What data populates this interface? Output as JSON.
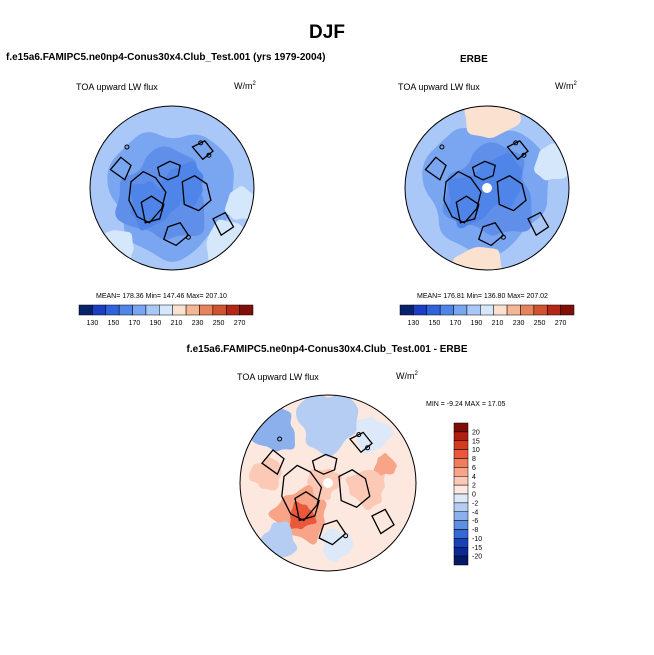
{
  "title": "DJF",
  "panels": [
    {
      "id": "model",
      "title": "f.e15a6.FAMIPC5.ne0np4-Conus30x4.Club_Test.001 (yrs 1979-2004)",
      "variable": "TOA upward LW flux",
      "units_base": "W/m",
      "units_exp": "2",
      "stats": "MEAN= 178.36  Min= 147.46  Max= 207.10"
    },
    {
      "id": "obs",
      "title": "ERBE",
      "variable": "TOA upward LW flux",
      "units_base": "W/m",
      "units_exp": "2",
      "stats": "MEAN= 176.81  Min= 136.80  Max= 207.02"
    },
    {
      "id": "diff",
      "title": "f.e15a6.FAMIPC5.ne0np4-Conus30x4.Club_Test.001 - ERBE",
      "variable": "TOA upward LW flux",
      "units_base": "W/m",
      "units_exp": "2",
      "stats": "MIN =  -9.24 MAX =  17.05"
    }
  ],
  "chart_data": [
    {
      "type": "heatmap",
      "projection": "north polar stereographic",
      "title": "f.e15a6.FAMIPC5.ne0np4-Conus30x4.Club_Test.001 (yrs 1979-2004)",
      "variable": "TOA upward LW flux",
      "units": "W/m2",
      "mean": 178.36,
      "min": 147.46,
      "max": 207.1,
      "colorbar": {
        "orientation": "horizontal",
        "labels": [
          "130",
          "150",
          "170",
          "190",
          "210",
          "230",
          "250",
          "270"
        ],
        "colors": [
          "#08236b",
          "#1a3fc4",
          "#2f63dc",
          "#4f84e8",
          "#7aa6f1",
          "#a9c8f7",
          "#d5e7fb",
          "#fbe1cf",
          "#f4b693",
          "#e7845d",
          "#d0522f",
          "#b42615",
          "#7f0f08"
        ]
      }
    },
    {
      "type": "heatmap",
      "projection": "north polar stereographic",
      "title": "ERBE",
      "variable": "TOA upward LW flux",
      "units": "W/m2",
      "mean": 176.81,
      "min": 136.8,
      "max": 207.02,
      "colorbar": {
        "orientation": "horizontal",
        "labels": [
          "130",
          "150",
          "170",
          "190",
          "210",
          "230",
          "250",
          "270"
        ],
        "colors": [
          "#08236b",
          "#1a3fc4",
          "#2f63dc",
          "#4f84e8",
          "#7aa6f1",
          "#a9c8f7",
          "#d5e7fb",
          "#fbe1cf",
          "#f4b693",
          "#e7845d",
          "#d0522f",
          "#b42615",
          "#7f0f08"
        ]
      }
    },
    {
      "type": "heatmap",
      "projection": "north polar stereographic",
      "title": "f.e15a6.FAMIPC5.ne0np4-Conus30x4.Club_Test.001 - ERBE",
      "variable": "TOA upward LW flux",
      "units": "W/m2",
      "min": -9.24,
      "max": 17.05,
      "colorbar": {
        "orientation": "vertical",
        "labels": [
          "20",
          "15",
          "10",
          "8",
          "6",
          "4",
          "2",
          "0",
          "-2",
          "-4",
          "-6",
          "-8",
          "-10",
          "-15",
          "-20"
        ],
        "colors": [
          "#7f0d07",
          "#b11f0f",
          "#d43a1d",
          "#e9583a",
          "#f27d5c",
          "#f7a488",
          "#fbc9b5",
          "#fde8df",
          "#dde8f8",
          "#b6cdf3",
          "#8cb0ec",
          "#5e8fe3",
          "#3368d5",
          "#1842b7",
          "#0b2894",
          "#061866"
        ]
      }
    }
  ]
}
